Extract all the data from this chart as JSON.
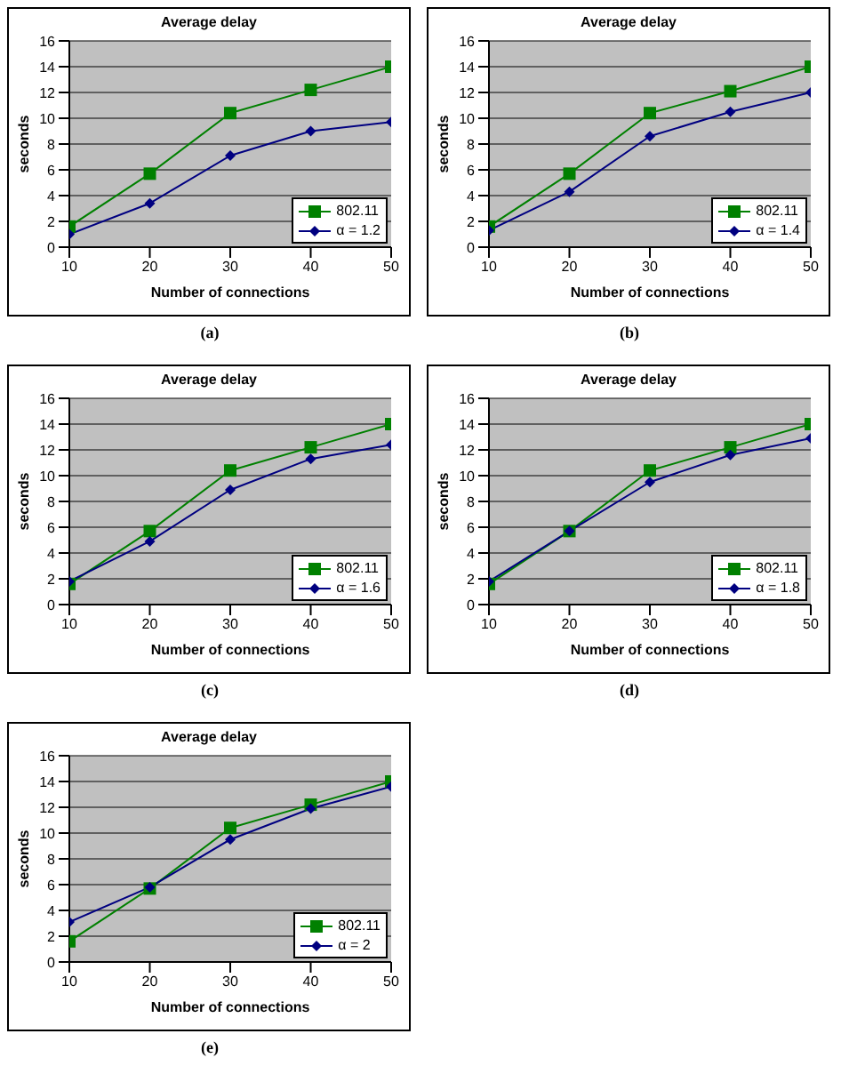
{
  "chart_data": [
    {
      "type": "line",
      "title": "Average delay",
      "xlabel": "Number of connections",
      "ylabel": "seconds",
      "x": [
        10,
        20,
        30,
        40,
        50
      ],
      "xlim": [
        10,
        50
      ],
      "xticks": [
        10,
        20,
        30,
        40,
        50
      ],
      "ylim": [
        0,
        16
      ],
      "yticks": [
        0,
        2,
        4,
        6,
        8,
        10,
        12,
        14,
        16
      ],
      "grid": "y",
      "legend": "bottom right",
      "annotations": [
        "(a)"
      ],
      "series": [
        {
          "name": "802.11",
          "color": "#008000",
          "marker": "square",
          "values": [
            1.6,
            5.7,
            10.4,
            12.2,
            14.0
          ]
        },
        {
          "name": "α = 1.2",
          "color": "#000080",
          "marker": "diamond",
          "values": [
            1.0,
            3.4,
            7.1,
            9.0,
            9.7
          ]
        }
      ]
    },
    {
      "type": "line",
      "title": "Average delay",
      "xlabel": "Number of connections",
      "ylabel": "seconds",
      "x": [
        10,
        20,
        30,
        40,
        50
      ],
      "xlim": [
        10,
        50
      ],
      "xticks": [
        10,
        20,
        30,
        40,
        50
      ],
      "ylim": [
        0,
        16
      ],
      "yticks": [
        0,
        2,
        4,
        6,
        8,
        10,
        12,
        14,
        16
      ],
      "grid": "y",
      "legend": "bottom right",
      "annotations": [
        "(b)"
      ],
      "series": [
        {
          "name": "802.11",
          "color": "#008000",
          "marker": "square",
          "values": [
            1.6,
            5.7,
            10.4,
            12.1,
            14.0
          ]
        },
        {
          "name": "α = 1.4",
          "color": "#000080",
          "marker": "diamond",
          "values": [
            1.3,
            4.3,
            8.6,
            10.5,
            12.0
          ]
        }
      ]
    },
    {
      "type": "line",
      "title": "Average delay",
      "xlabel": "Number of connections",
      "ylabel": "seconds",
      "x": [
        10,
        20,
        30,
        40,
        50
      ],
      "xlim": [
        10,
        50
      ],
      "xticks": [
        10,
        20,
        30,
        40,
        50
      ],
      "ylim": [
        0,
        16
      ],
      "yticks": [
        0,
        2,
        4,
        6,
        8,
        10,
        12,
        14,
        16
      ],
      "grid": "y",
      "legend": "bottom right",
      "annotations": [
        "(c)"
      ],
      "series": [
        {
          "name": "802.11",
          "color": "#008000",
          "marker": "square",
          "values": [
            1.6,
            5.7,
            10.4,
            12.2,
            14.0
          ]
        },
        {
          "name": "α = 1.6",
          "color": "#000080",
          "marker": "diamond",
          "values": [
            1.8,
            4.9,
            8.9,
            11.3,
            12.4
          ]
        }
      ]
    },
    {
      "type": "line",
      "title": "Average delay",
      "xlabel": "Number of connections",
      "ylabel": "seconds",
      "x": [
        10,
        20,
        30,
        40,
        50
      ],
      "xlim": [
        10,
        50
      ],
      "xticks": [
        10,
        20,
        30,
        40,
        50
      ],
      "ylim": [
        0,
        16
      ],
      "yticks": [
        0,
        2,
        4,
        6,
        8,
        10,
        12,
        14,
        16
      ],
      "grid": "y",
      "legend": "bottom right",
      "annotations": [
        "(d)"
      ],
      "series": [
        {
          "name": "802.11",
          "color": "#008000",
          "marker": "square",
          "values": [
            1.6,
            5.7,
            10.4,
            12.2,
            14.0
          ]
        },
        {
          "name": "α = 1.8",
          "color": "#000080",
          "marker": "diamond",
          "values": [
            1.8,
            5.7,
            9.5,
            11.6,
            12.9
          ]
        }
      ]
    },
    {
      "type": "line",
      "title": "Average delay",
      "xlabel": "Number of connections",
      "ylabel": "seconds",
      "x": [
        10,
        20,
        30,
        40,
        50
      ],
      "xlim": [
        10,
        50
      ],
      "xticks": [
        10,
        20,
        30,
        40,
        50
      ],
      "ylim": [
        0,
        16
      ],
      "yticks": [
        0,
        2,
        4,
        6,
        8,
        10,
        12,
        14,
        16
      ],
      "grid": "y",
      "legend": "bottom right",
      "annotations": [
        "(e)"
      ],
      "series": [
        {
          "name": "802.11",
          "color": "#008000",
          "marker": "square",
          "values": [
            1.6,
            5.7,
            10.4,
            12.2,
            14.0
          ]
        },
        {
          "name": "α = 2",
          "color": "#000080",
          "marker": "diamond",
          "values": [
            3.1,
            5.8,
            9.5,
            11.9,
            13.6
          ]
        }
      ]
    }
  ]
}
